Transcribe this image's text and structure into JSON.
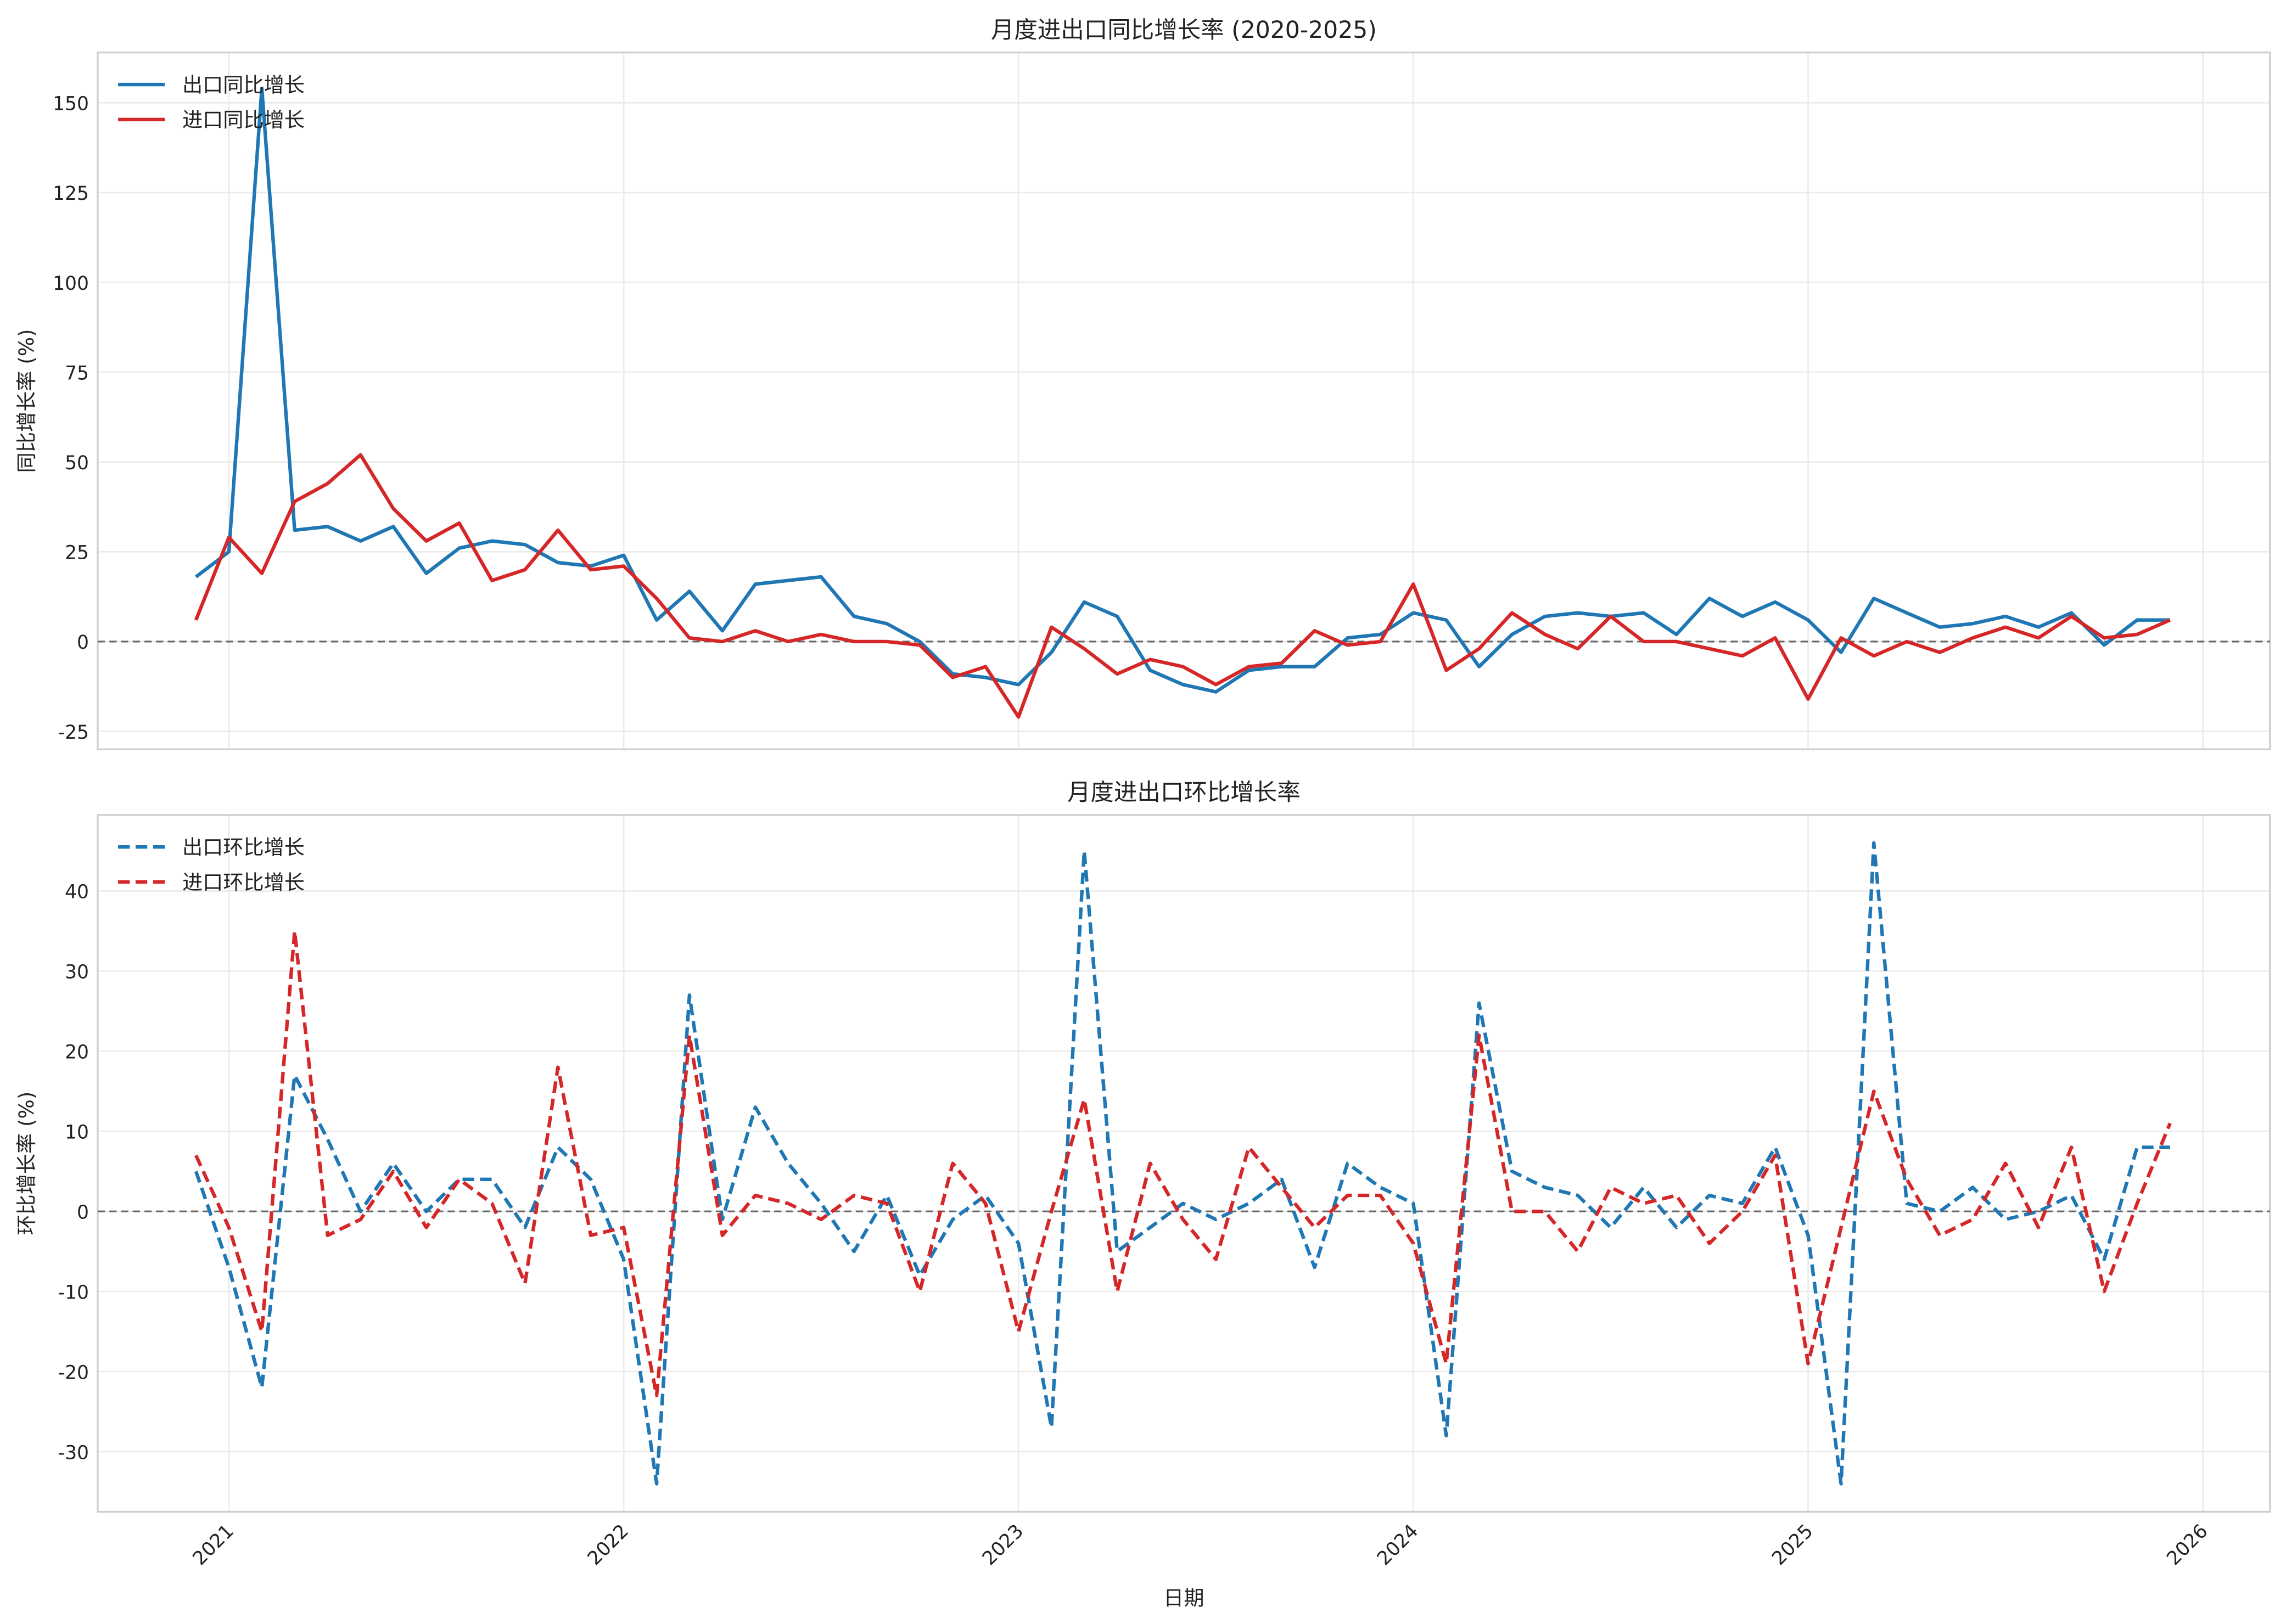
{
  "chart_data": [
    {
      "type": "line",
      "title": "月度进出口同比增长率 (2020-2025)",
      "xlabel": "",
      "ylabel": "同比增长率 (%)",
      "ylim": [
        -30,
        164
      ],
      "yticks": [
        -25,
        0,
        25,
        50,
        75,
        100,
        125,
        150
      ],
      "legend_position": "top-left",
      "grid": true,
      "reference_line": 0,
      "x_start": "2020-12",
      "x_frequency": "monthly",
      "series": [
        {
          "name": "出口同比增长",
          "color": "#1f77b4",
          "style": "solid",
          "values": [
            18,
            25,
            154,
            31,
            32,
            28,
            32,
            19,
            26,
            28,
            27,
            22,
            21,
            24,
            6,
            14,
            3,
            16,
            17,
            18,
            7,
            5,
            0,
            -9,
            -10,
            -12,
            -3,
            11,
            7,
            -8,
            -12,
            -14,
            -8,
            -7,
            -7,
            1,
            2,
            8,
            6,
            -7,
            2,
            7,
            8,
            7,
            8,
            2,
            12,
            7,
            11,
            6,
            -3,
            12,
            8,
            4,
            5,
            7,
            4,
            8,
            -1,
            6,
            6
          ]
        },
        {
          "name": "进口同比增长",
          "color": "#d62728",
          "style": "solid",
          "values": [
            6,
            29,
            19,
            39,
            44,
            52,
            37,
            28,
            33,
            17,
            20,
            31,
            20,
            21,
            12,
            1,
            0,
            3,
            0,
            2,
            0,
            0,
            -1,
            -10,
            -7,
            -21,
            4,
            -2,
            -9,
            -5,
            -7,
            -12,
            -7,
            -6,
            3,
            -1,
            0,
            16,
            -8,
            -2,
            8,
            2,
            -2,
            7,
            0,
            0,
            -2,
            -4,
            1,
            -16,
            1,
            -4,
            0,
            -3,
            1,
            4,
            1,
            7,
            1,
            2,
            6
          ]
        }
      ]
    },
    {
      "type": "line",
      "title": "月度进出口环比增长率",
      "xlabel": "日期",
      "ylabel": "环比增长率 (%)",
      "ylim": [
        -37.5,
        49.5
      ],
      "yticks": [
        -30,
        -20,
        -10,
        0,
        10,
        20,
        30,
        40
      ],
      "xticks": [
        "2021",
        "2022",
        "2023",
        "2024",
        "2025",
        "2026"
      ],
      "legend_position": "top-left",
      "grid": true,
      "reference_line": 0,
      "x_start": "2020-12",
      "x_frequency": "monthly",
      "series": [
        {
          "name": "出口环比增长",
          "color": "#1f77b4",
          "style": "dashed",
          "values": [
            5,
            -7,
            -22,
            17,
            9,
            0,
            6,
            0,
            4,
            4,
            -2,
            8,
            4,
            -6,
            -34,
            27,
            -1,
            13,
            6,
            1,
            -5,
            2,
            -8,
            -1,
            2,
            -4,
            -27,
            45,
            -5,
            -2,
            1,
            -1,
            1,
            4,
            -7,
            6,
            3,
            1,
            -28,
            26,
            5,
            3,
            2,
            -2,
            3,
            -2,
            2,
            1,
            8,
            -3,
            -34,
            46,
            1,
            0,
            3,
            -1,
            0,
            2,
            -6,
            8,
            8
          ]
        },
        {
          "name": "进口环比增长",
          "color": "#d62728",
          "style": "dashed",
          "values": [
            7,
            -2,
            -15,
            35,
            -3,
            -1,
            5,
            -2,
            4,
            1,
            -9,
            18,
            -3,
            -2,
            -23,
            22,
            -3,
            2,
            1,
            -1,
            2,
            1,
            -10,
            6,
            1,
            -15,
            0,
            14,
            -10,
            6,
            -1,
            -6,
            8,
            3,
            -2,
            2,
            2,
            -4,
            -19,
            22,
            0,
            0,
            -5,
            3,
            1,
            2,
            -4,
            0,
            7,
            -19,
            -2,
            15,
            4,
            -3,
            -1,
            6,
            -2,
            8,
            -10,
            1,
            11
          ]
        }
      ]
    }
  ]
}
